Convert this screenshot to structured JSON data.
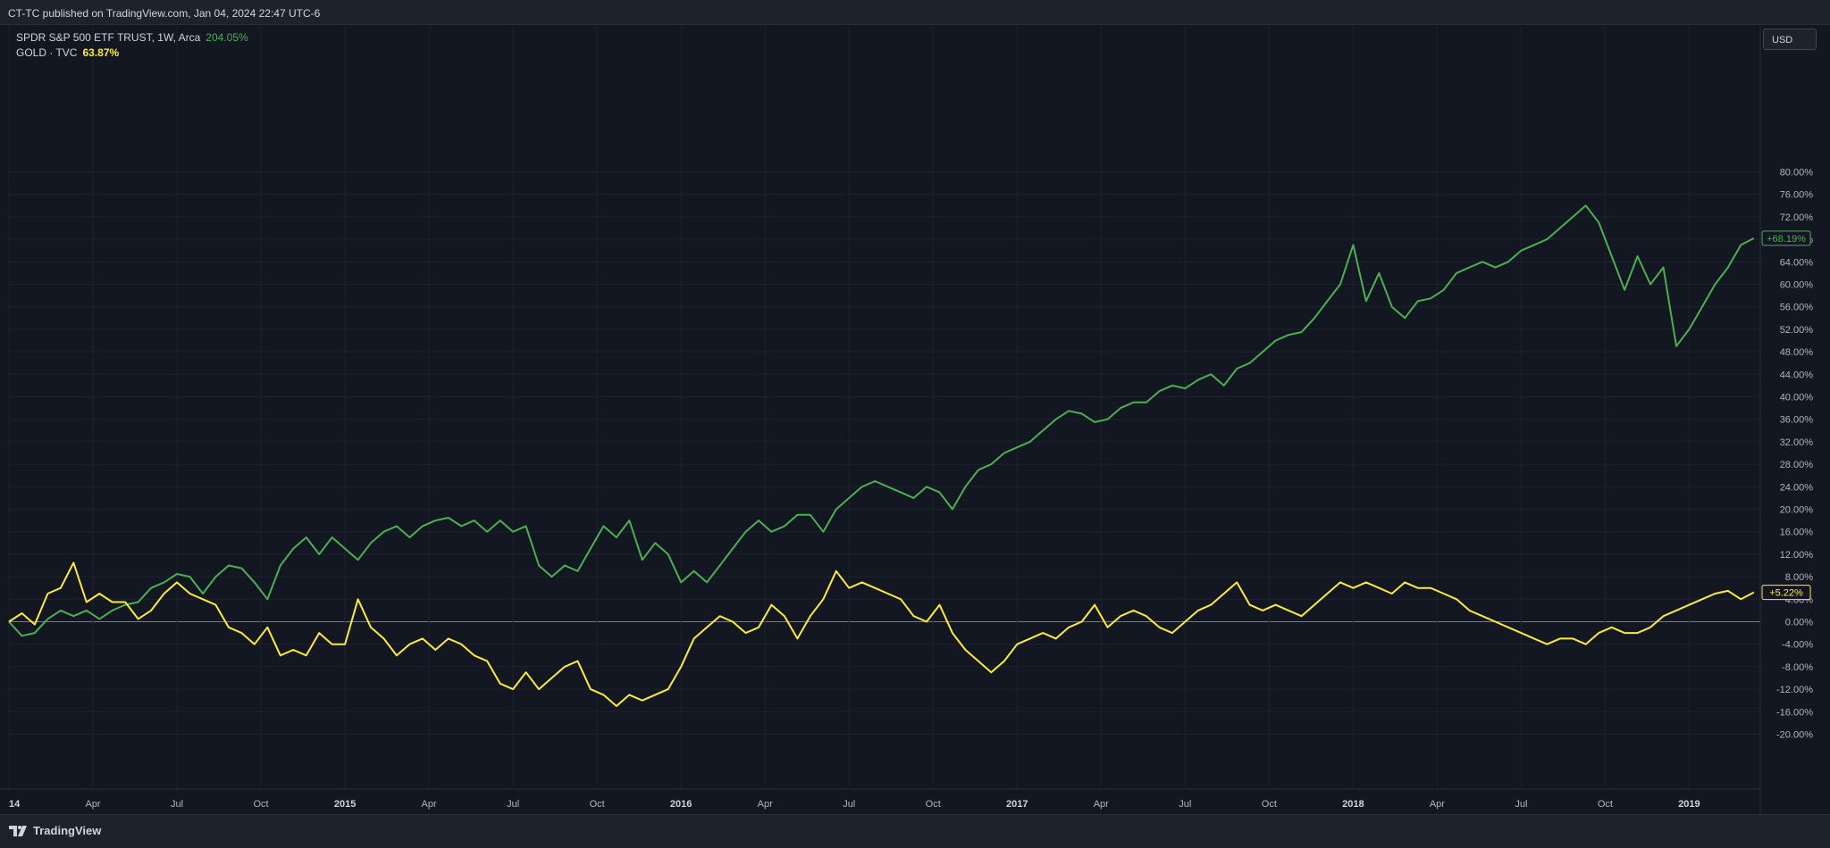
{
  "header": {
    "text": "CT-TC published on TradingView.com, Jan 04, 2024 22:47 UTC-6"
  },
  "legend": {
    "spy": {
      "name": "SPDR S&P 500 ETF TRUST, 1W, Arca",
      "change": "204.05%",
      "color": "#4caf50"
    },
    "gold": {
      "name": "GOLD · TVC",
      "change": "63.87%",
      "color": "#ffeb3b"
    }
  },
  "currency": "USD",
  "footer": {
    "brand": "TradingView"
  },
  "colors": {
    "background": "#131722",
    "grid": "#1e222d",
    "spy": "#4caf50",
    "gold": "#ffeb3b",
    "zero_line": "#787b86"
  },
  "chart_data": {
    "type": "line",
    "title": "",
    "x_unit": "weeks since first bar (Jan 2014)",
    "ylim": [
      -24,
      82
    ],
    "y_ticks": [
      80,
      76,
      72,
      68,
      64,
      60,
      56,
      52,
      48,
      44,
      40,
      36,
      32,
      28,
      24,
      20,
      16,
      12,
      8,
      4,
      0,
      -4,
      -8,
      -12,
      -16,
      -20
    ],
    "x_ticks": [
      {
        "label": "14",
        "week": 0,
        "year": true
      },
      {
        "label": "Apr",
        "week": 13
      },
      {
        "label": "Jul",
        "week": 26
      },
      {
        "label": "Oct",
        "week": 39
      },
      {
        "label": "2015",
        "week": 52,
        "year": true
      },
      {
        "label": "Apr",
        "week": 65
      },
      {
        "label": "Jul",
        "week": 78
      },
      {
        "label": "Oct",
        "week": 91
      },
      {
        "label": "2016",
        "week": 104,
        "year": true
      },
      {
        "label": "Apr",
        "week": 117
      },
      {
        "label": "Jul",
        "week": 130
      },
      {
        "label": "Oct",
        "week": 143
      },
      {
        "label": "2017",
        "week": 156,
        "year": true
      },
      {
        "label": "Apr",
        "week": 169
      },
      {
        "label": "Jul",
        "week": 182
      },
      {
        "label": "Oct",
        "week": 195
      },
      {
        "label": "2018",
        "week": 208,
        "year": true
      },
      {
        "label": "Apr",
        "week": 221
      },
      {
        "label": "Jul",
        "week": 234
      },
      {
        "label": "Oct",
        "week": 247
      },
      {
        "label": "2019",
        "week": 260,
        "year": true
      }
    ],
    "x_range": [
      0,
      271
    ],
    "series": [
      {
        "name": "SPDR S&P 500 ETF TRUST",
        "color": "#4caf50",
        "last_label": "+68.19%",
        "last_value": 68.19,
        "points": [
          [
            0,
            0
          ],
          [
            2,
            -2.5
          ],
          [
            4,
            -2
          ],
          [
            6,
            0.5
          ],
          [
            8,
            2
          ],
          [
            10,
            1
          ],
          [
            12,
            2
          ],
          [
            14,
            0.5
          ],
          [
            16,
            2
          ],
          [
            18,
            3
          ],
          [
            20,
            3.5
          ],
          [
            22,
            6
          ],
          [
            24,
            7
          ],
          [
            26,
            8.5
          ],
          [
            28,
            8
          ],
          [
            30,
            5
          ],
          [
            32,
            8
          ],
          [
            34,
            10
          ],
          [
            36,
            9.5
          ],
          [
            38,
            7
          ],
          [
            40,
            4
          ],
          [
            42,
            10
          ],
          [
            44,
            13
          ],
          [
            46,
            15
          ],
          [
            48,
            12
          ],
          [
            50,
            15
          ],
          [
            52,
            13
          ],
          [
            54,
            11
          ],
          [
            56,
            14
          ],
          [
            58,
            16
          ],
          [
            60,
            17
          ],
          [
            62,
            15
          ],
          [
            64,
            17
          ],
          [
            66,
            18
          ],
          [
            68,
            18.5
          ],
          [
            70,
            17
          ],
          [
            72,
            18
          ],
          [
            74,
            16
          ],
          [
            76,
            18
          ],
          [
            78,
            16
          ],
          [
            80,
            17
          ],
          [
            82,
            10
          ],
          [
            84,
            8
          ],
          [
            86,
            10
          ],
          [
            88,
            9
          ],
          [
            90,
            13
          ],
          [
            92,
            17
          ],
          [
            94,
            15
          ],
          [
            96,
            18
          ],
          [
            98,
            11
          ],
          [
            100,
            14
          ],
          [
            102,
            12
          ],
          [
            104,
            7
          ],
          [
            106,
            9
          ],
          [
            108,
            7
          ],
          [
            110,
            10
          ],
          [
            112,
            13
          ],
          [
            114,
            16
          ],
          [
            116,
            18
          ],
          [
            118,
            16
          ],
          [
            120,
            17
          ],
          [
            122,
            19
          ],
          [
            124,
            19
          ],
          [
            126,
            16
          ],
          [
            128,
            20
          ],
          [
            130,
            22
          ],
          [
            132,
            24
          ],
          [
            134,
            25
          ],
          [
            136,
            24
          ],
          [
            138,
            23
          ],
          [
            140,
            22
          ],
          [
            142,
            24
          ],
          [
            144,
            23
          ],
          [
            146,
            20
          ],
          [
            148,
            24
          ],
          [
            150,
            27
          ],
          [
            152,
            28
          ],
          [
            154,
            30
          ],
          [
            156,
            31
          ],
          [
            158,
            32
          ],
          [
            160,
            34
          ],
          [
            162,
            36
          ],
          [
            164,
            37.5
          ],
          [
            166,
            37
          ],
          [
            168,
            35.5
          ],
          [
            170,
            36
          ],
          [
            172,
            38
          ],
          [
            174,
            39
          ],
          [
            176,
            39
          ],
          [
            178,
            41
          ],
          [
            180,
            42
          ],
          [
            182,
            41.5
          ],
          [
            184,
            43
          ],
          [
            186,
            44
          ],
          [
            188,
            42
          ],
          [
            190,
            45
          ],
          [
            192,
            46
          ],
          [
            194,
            48
          ],
          [
            196,
            50
          ],
          [
            198,
            51
          ],
          [
            200,
            51.5
          ],
          [
            202,
            54
          ],
          [
            204,
            57
          ],
          [
            206,
            60
          ],
          [
            208,
            67
          ],
          [
            210,
            57
          ],
          [
            212,
            62
          ],
          [
            214,
            56
          ],
          [
            216,
            54
          ],
          [
            218,
            57
          ],
          [
            220,
            57.5
          ],
          [
            222,
            59
          ],
          [
            224,
            62
          ],
          [
            226,
            63
          ],
          [
            228,
            64
          ],
          [
            230,
            63
          ],
          [
            232,
            64
          ],
          [
            234,
            66
          ],
          [
            236,
            67
          ],
          [
            238,
            68
          ],
          [
            240,
            70
          ],
          [
            242,
            72
          ],
          [
            244,
            74
          ],
          [
            246,
            71
          ],
          [
            248,
            65
          ],
          [
            250,
            59
          ],
          [
            252,
            65
          ],
          [
            254,
            60
          ],
          [
            256,
            63
          ],
          [
            258,
            49
          ],
          [
            260,
            52
          ],
          [
            262,
            56
          ],
          [
            264,
            60
          ],
          [
            266,
            63
          ],
          [
            268,
            67
          ],
          [
            270,
            68.19
          ]
        ]
      },
      {
        "name": "GOLD",
        "color": "#ffeb3b",
        "last_label": "+5.22%",
        "last_value": 5.22,
        "points": [
          [
            0,
            0
          ],
          [
            2,
            1.5
          ],
          [
            4,
            -0.5
          ],
          [
            6,
            5
          ],
          [
            8,
            6
          ],
          [
            10,
            10.5
          ],
          [
            12,
            3.5
          ],
          [
            14,
            5
          ],
          [
            16,
            3.5
          ],
          [
            18,
            3.5
          ],
          [
            20,
            0.5
          ],
          [
            22,
            2
          ],
          [
            24,
            5
          ],
          [
            26,
            7
          ],
          [
            28,
            5
          ],
          [
            30,
            4
          ],
          [
            32,
            3
          ],
          [
            34,
            -1
          ],
          [
            36,
            -2
          ],
          [
            38,
            -4
          ],
          [
            40,
            -1
          ],
          [
            42,
            -6
          ],
          [
            44,
            -5
          ],
          [
            46,
            -6
          ],
          [
            48,
            -2
          ],
          [
            50,
            -4
          ],
          [
            52,
            -4
          ],
          [
            54,
            4
          ],
          [
            56,
            -1
          ],
          [
            58,
            -3
          ],
          [
            60,
            -6
          ],
          [
            62,
            -4
          ],
          [
            64,
            -3
          ],
          [
            66,
            -5
          ],
          [
            68,
            -3
          ],
          [
            70,
            -4
          ],
          [
            72,
            -6
          ],
          [
            74,
            -7
          ],
          [
            76,
            -11
          ],
          [
            78,
            -12
          ],
          [
            80,
            -9
          ],
          [
            82,
            -12
          ],
          [
            84,
            -10
          ],
          [
            86,
            -8
          ],
          [
            88,
            -7
          ],
          [
            90,
            -12
          ],
          [
            92,
            -13
          ],
          [
            94,
            -15
          ],
          [
            96,
            -13
          ],
          [
            98,
            -14
          ],
          [
            100,
            -13
          ],
          [
            102,
            -12
          ],
          [
            104,
            -8
          ],
          [
            106,
            -3
          ],
          [
            108,
            -1
          ],
          [
            110,
            1
          ],
          [
            112,
            0
          ],
          [
            114,
            -2
          ],
          [
            116,
            -1
          ],
          [
            118,
            3
          ],
          [
            120,
            1
          ],
          [
            122,
            -3
          ],
          [
            124,
            1
          ],
          [
            126,
            4
          ],
          [
            128,
            9
          ],
          [
            130,
            6
          ],
          [
            132,
            7
          ],
          [
            134,
            6
          ],
          [
            136,
            5
          ],
          [
            138,
            4
          ],
          [
            140,
            1
          ],
          [
            142,
            0
          ],
          [
            144,
            3
          ],
          [
            146,
            -2
          ],
          [
            148,
            -5
          ],
          [
            150,
            -7
          ],
          [
            152,
            -9
          ],
          [
            154,
            -7
          ],
          [
            156,
            -4
          ],
          [
            158,
            -3
          ],
          [
            160,
            -2
          ],
          [
            162,
            -3
          ],
          [
            164,
            -1
          ],
          [
            166,
            0
          ],
          [
            168,
            3
          ],
          [
            170,
            -1
          ],
          [
            172,
            1
          ],
          [
            174,
            2
          ],
          [
            176,
            1
          ],
          [
            178,
            -1
          ],
          [
            180,
            -2
          ],
          [
            182,
            0
          ],
          [
            184,
            2
          ],
          [
            186,
            3
          ],
          [
            188,
            5
          ],
          [
            190,
            7
          ],
          [
            192,
            3
          ],
          [
            194,
            2
          ],
          [
            196,
            3
          ],
          [
            198,
            2
          ],
          [
            200,
            1
          ],
          [
            202,
            3
          ],
          [
            204,
            5
          ],
          [
            206,
            7
          ],
          [
            208,
            6
          ],
          [
            210,
            7
          ],
          [
            212,
            6
          ],
          [
            214,
            5
          ],
          [
            216,
            7
          ],
          [
            218,
            6
          ],
          [
            220,
            6
          ],
          [
            222,
            5
          ],
          [
            224,
            4
          ],
          [
            226,
            2
          ],
          [
            228,
            1
          ],
          [
            230,
            0
          ],
          [
            232,
            -1
          ],
          [
            234,
            -2
          ],
          [
            236,
            -3
          ],
          [
            238,
            -4
          ],
          [
            240,
            -3
          ],
          [
            242,
            -3
          ],
          [
            244,
            -4
          ],
          [
            246,
            -2
          ],
          [
            248,
            -1
          ],
          [
            250,
            -2
          ],
          [
            252,
            -2
          ],
          [
            254,
            -1
          ],
          [
            256,
            1
          ],
          [
            258,
            2
          ],
          [
            260,
            3
          ],
          [
            262,
            4
          ],
          [
            264,
            5
          ],
          [
            266,
            5.5
          ],
          [
            268,
            4
          ],
          [
            270,
            5.22
          ]
        ]
      }
    ]
  }
}
